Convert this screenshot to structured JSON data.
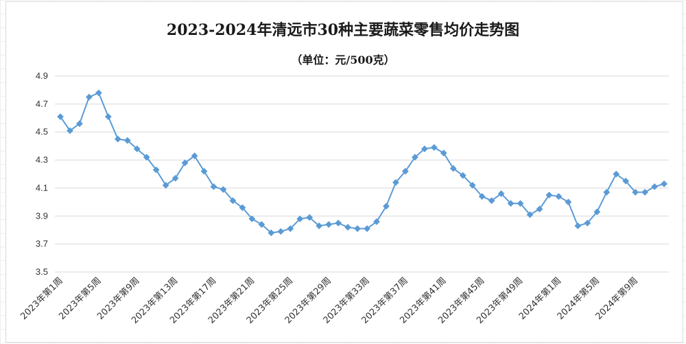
{
  "chart_data": {
    "type": "line",
    "title": "2023-2024年清远市30种主要蔬菜零售均价走势图",
    "subtitle": "（单位：元/500克）",
    "ylim": [
      3.5,
      4.9
    ],
    "yticks": [
      "4.9",
      "4.7",
      "4.5",
      "4.3",
      "4.1",
      "3.9",
      "3.7",
      "3.5"
    ],
    "grid": true,
    "color": "#5b9bd5",
    "x_tick_labels": [
      "2023年第1周",
      "2023年第5周",
      "2023年第9周",
      "2023年第13周",
      "2023年第17周",
      "2023年第21周",
      "2023年第25周",
      "2023年第29周",
      "2023年第33周",
      "2023年第37周",
      "2023年第41周",
      "2023年第45周",
      "2023年第49周",
      "2024年第1周",
      "2024年第5周",
      "2024年第9周"
    ],
    "series": [
      {
        "values": [
          4.61,
          4.51,
          4.56,
          4.75,
          4.78,
          4.61,
          4.45,
          4.44,
          4.38,
          4.32,
          4.23,
          4.12,
          4.17,
          4.28,
          4.33,
          4.22,
          4.11,
          4.09,
          4.01,
          3.96,
          3.88,
          3.84,
          3.78,
          3.79,
          3.81,
          3.88,
          3.89,
          3.83,
          3.84,
          3.85,
          3.82,
          3.81,
          3.81,
          3.86,
          3.97,
          4.14,
          4.22,
          4.32,
          4.38,
          4.39,
          4.35,
          4.24,
          4.19,
          4.12,
          4.04,
          4.01,
          4.06,
          3.99,
          3.99,
          3.91,
          3.95,
          4.05,
          4.04,
          4.0,
          3.83,
          3.85,
          3.93,
          4.07,
          4.2,
          4.15,
          4.07,
          4.07,
          4.11,
          4.13
        ]
      }
    ]
  }
}
